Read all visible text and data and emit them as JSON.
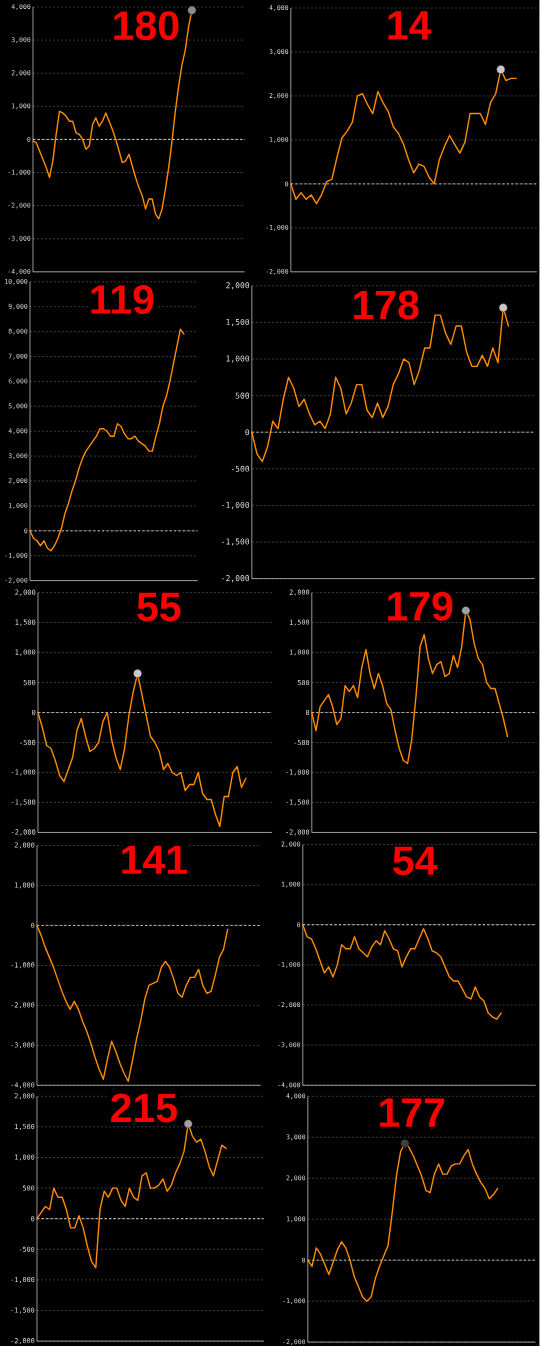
{
  "chart_data": [
    {
      "type": "line",
      "title": "180",
      "categories": [
        null,
        null,
        null,
        null,
        null,
        null,
        null,
        null,
        null,
        null,
        null,
        null,
        null,
        null,
        null,
        null,
        null,
        null,
        null,
        null,
        null,
        null,
        null,
        null,
        null,
        null,
        null,
        null,
        null,
        null,
        null,
        null,
        null,
        null,
        null,
        null,
        null,
        null,
        null,
        null,
        null,
        null,
        null,
        null,
        null,
        null,
        null,
        null,
        null,
        null,
        null,
        null,
        null,
        null,
        null,
        null,
        null,
        null,
        null,
        null,
        null,
        null,
        null,
        null,
        null
      ],
      "series": [
        {
          "color": "#ff8c00",
          "values": [
            -50,
            -100,
            -350,
            -600,
            -850,
            -1150,
            -650,
            150,
            850,
            800,
            700,
            550,
            550,
            200,
            150,
            0,
            -300,
            -200,
            450,
            650,
            400,
            550,
            800,
            550,
            300,
            0,
            -350,
            -700,
            -650,
            -450,
            -800,
            -1150,
            -1450,
            -1700,
            -2100,
            -1800,
            -1800,
            -2250,
            -2400,
            -2100,
            -1500,
            -850,
            -50,
            850,
            1600,
            2250,
            2700,
            3400,
            3900,
            null,
            null,
            null,
            null,
            null,
            null,
            null,
            null,
            null,
            null,
            null,
            null,
            null,
            null,
            null,
            null
          ]
        },
        {
          "type": "scatter",
          "marker": "circle",
          "color": "#8c8c8c",
          "values": [
            null,
            null,
            null,
            null,
            null,
            null,
            null,
            null,
            null,
            null,
            null,
            null,
            null,
            null,
            null,
            null,
            null,
            null,
            null,
            null,
            null,
            null,
            null,
            null,
            null,
            null,
            null,
            null,
            null,
            null,
            null,
            null,
            null,
            null,
            null,
            null,
            null,
            null,
            null,
            null,
            null,
            null,
            null,
            null,
            null,
            null,
            null,
            null,
            3900,
            null,
            null,
            null,
            null,
            null,
            null,
            null,
            null,
            null,
            null,
            null,
            null,
            null,
            null,
            null,
            null
          ]
        }
      ],
      "ylim": [
        -4000,
        4000
      ],
      "yticks": [
        {
          "value": -4000,
          "label": "-4,000"
        },
        {
          "value": -3000,
          "label": "-3,000"
        },
        {
          "value": -2000,
          "label": "-2,000"
        },
        {
          "value": -1000,
          "label": "-1,000"
        },
        0,
        {
          "value": 1000,
          "label": "1,000"
        },
        {
          "value": 2000,
          "label": "2,000"
        },
        {
          "value": 3000,
          "label": "3,000"
        },
        {
          "value": 4000,
          "label": "4,000"
        }
      ],
      "grid": "y",
      "tick_labels": "y",
      "ref_lines": [
        {
          "axis": "y",
          "value": 0,
          "color": "#ffffff",
          "line_style": "dashed"
        }
      ]
    },
    {
      "type": "line",
      "title": "14",
      "categories": [
        null,
        null,
        null,
        null,
        null,
        null,
        null,
        null,
        null,
        null,
        null,
        null,
        null,
        null,
        null,
        null,
        null,
        null,
        null,
        null,
        null,
        null,
        null,
        null,
        null,
        null,
        null,
        null,
        null,
        null,
        null,
        null,
        null,
        null,
        null,
        null,
        null,
        null,
        null,
        null,
        null,
        null,
        null,
        null,
        null,
        null,
        null,
        null,
        null
      ],
      "series": [
        {
          "color": "#ff8c00",
          "values": [
            0,
            -350,
            -200,
            -350,
            -250,
            -450,
            -250,
            50,
            100,
            600,
            1050,
            1200,
            1400,
            2000,
            2050,
            1800,
            1600,
            2100,
            1850,
            1650,
            1300,
            1150,
            900,
            550,
            250,
            450,
            400,
            150,
            0,
            550,
            850,
            1100,
            900,
            700,
            950,
            1600,
            1600,
            1600,
            1350,
            1850,
            2050,
            2600,
            2350,
            2400,
            2400,
            null,
            null,
            null,
            null
          ]
        },
        {
          "type": "scatter",
          "marker": "circle",
          "color": "#c8c8c8",
          "values": [
            null,
            null,
            null,
            null,
            null,
            null,
            null,
            null,
            null,
            null,
            null,
            null,
            null,
            null,
            null,
            null,
            null,
            null,
            null,
            null,
            null,
            null,
            null,
            null,
            null,
            null,
            null,
            null,
            null,
            null,
            null,
            null,
            null,
            null,
            null,
            null,
            null,
            null,
            null,
            null,
            null,
            2600,
            null,
            null,
            null,
            null,
            null,
            null,
            null
          ]
        }
      ],
      "ylim": [
        -2000,
        4000
      ],
      "yticks": [
        {
          "value": -2000,
          "label": "-2,000"
        },
        {
          "value": -1000,
          "label": "-1,000"
        },
        0,
        {
          "value": 1000,
          "label": "1,000"
        },
        {
          "value": 2000,
          "label": "2,000"
        },
        {
          "value": 3000,
          "label": "3,000"
        },
        {
          "value": 4000,
          "label": "4,000"
        }
      ],
      "grid": "y",
      "tick_labels": "y",
      "ref_lines": [
        {
          "axis": "y",
          "value": 0,
          "color": "#dcdcdc",
          "line_style": "dashed"
        }
      ]
    },
    {
      "type": "line",
      "title": "119",
      "categories": [
        null,
        null,
        null,
        null,
        null,
        null,
        null,
        null,
        null,
        null,
        null,
        null,
        null,
        null,
        null,
        null,
        null,
        null,
        null,
        null,
        null,
        null,
        null,
        null,
        null,
        null,
        null,
        null,
        null,
        null,
        null,
        null,
        null,
        null,
        null,
        null,
        null,
        null,
        null,
        null,
        null,
        null,
        null,
        null,
        null,
        null,
        null,
        null,
        null
      ],
      "series": [
        {
          "color": "#ff8c00",
          "values": [
            0,
            -300,
            -400,
            -600,
            -400,
            -700,
            -800,
            -600,
            -300,
            100,
            700,
            1100,
            1600,
            2000,
            2500,
            2900,
            3200,
            3400,
            3600,
            3800,
            4100,
            4100,
            4000,
            3800,
            3800,
            4300,
            4200,
            3900,
            3700,
            3700,
            3800,
            3600,
            3500,
            3400,
            3200,
            3200,
            3800,
            4300,
            5000,
            5400,
            6000,
            6700,
            7400,
            8100,
            7900,
            null,
            null,
            null,
            null
          ]
        }
      ],
      "ylim": [
        -2000,
        10000
      ],
      "yticks": [
        {
          "value": -2000,
          "label": "-2,000"
        },
        {
          "value": -1000,
          "label": "-1,000"
        },
        0,
        {
          "value": 1000,
          "label": "1,000"
        },
        {
          "value": 2000,
          "label": "2,000"
        },
        {
          "value": 3000,
          "label": "3,000"
        },
        {
          "value": 4000,
          "label": "4,000"
        },
        {
          "value": 5000,
          "label": "5,000"
        },
        {
          "value": 6000,
          "label": "6,000"
        },
        {
          "value": 7000,
          "label": "7,000"
        },
        {
          "value": 8000,
          "label": "8,000"
        },
        {
          "value": 9000,
          "label": "9,000"
        },
        {
          "value": 10000,
          "label": "10,000"
        }
      ],
      "grid": "y",
      "tick_labels": "y",
      "ref_lines": [
        {
          "axis": "y",
          "value": 0,
          "color": "#dcdcdc",
          "line_style": "dashed"
        }
      ]
    },
    {
      "type": "line",
      "title": "178",
      "categories": [
        null,
        null,
        null,
        null,
        null,
        null,
        null,
        null,
        null,
        null,
        null,
        null,
        null,
        null,
        null,
        null,
        null,
        null,
        null,
        null,
        null,
        null,
        null,
        null,
        null,
        null,
        null,
        null,
        null,
        null,
        null,
        null,
        null,
        null,
        null,
        null,
        null,
        null,
        null,
        null,
        null,
        null,
        null,
        null,
        null,
        null,
        null,
        null,
        null,
        null,
        null,
        null,
        null,
        null,
        null
      ],
      "series": [
        {
          "color": "#ff8c00",
          "values": [
            0,
            -300,
            -400,
            -200,
            150,
            50,
            450,
            750,
            600,
            350,
            450,
            250,
            100,
            150,
            50,
            250,
            750,
            600,
            250,
            400,
            650,
            650,
            300,
            200,
            400,
            200,
            350,
            650,
            800,
            1000,
            950,
            650,
            850,
            1150,
            1150,
            1600,
            1600,
            1350,
            1200,
            1450,
            1450,
            1100,
            900,
            900,
            1050,
            900,
            1150,
            950,
            1700,
            1450,
            null,
            null,
            null,
            null,
            null
          ]
        },
        {
          "type": "scatter",
          "marker": "circle",
          "color": "#c8c8c8",
          "values": [
            null,
            null,
            null,
            null,
            null,
            null,
            null,
            null,
            null,
            null,
            null,
            null,
            null,
            null,
            null,
            null,
            null,
            null,
            null,
            null,
            null,
            null,
            null,
            null,
            null,
            null,
            null,
            null,
            null,
            null,
            null,
            null,
            null,
            null,
            null,
            null,
            null,
            null,
            null,
            null,
            null,
            null,
            null,
            null,
            null,
            null,
            null,
            null,
            1700,
            null,
            null,
            null,
            null,
            null,
            null
          ]
        }
      ],
      "ylim": [
        -2000,
        2000
      ],
      "yticks": [
        {
          "value": -2000,
          "label": "-2,000"
        },
        {
          "value": -1500,
          "label": "-1,500"
        },
        {
          "value": -1000,
          "label": "-1,000"
        },
        -500,
        0,
        500,
        {
          "value": 1000,
          "label": "1,000"
        },
        {
          "value": 1500,
          "label": "1,500"
        },
        {
          "value": 2000,
          "label": "2,000"
        }
      ],
      "grid": "y",
      "tick_labels": "y",
      "ref_lines": [
        {
          "axis": "y",
          "value": 0,
          "color": "#dcdcdc",
          "line_style": "dashed"
        }
      ]
    },
    {
      "type": "line",
      "title": "55",
      "categories": [
        null,
        null,
        null,
        null,
        null,
        null,
        null,
        null,
        null,
        null,
        null,
        null,
        null,
        null,
        null,
        null,
        null,
        null,
        null,
        null,
        null,
        null,
        null,
        null,
        null,
        null,
        null,
        null,
        null,
        null,
        null,
        null,
        null,
        null,
        null,
        null,
        null,
        null,
        null,
        null,
        null,
        null,
        null,
        null,
        null,
        null,
        null,
        null,
        null,
        null,
        null,
        null,
        null,
        null,
        null
      ],
      "series": [
        {
          "color": "#ff8c00",
          "values": [
            0,
            -250,
            -550,
            -600,
            -800,
            -1050,
            -1150,
            -950,
            -750,
            -300,
            -100,
            -400,
            -650,
            -600,
            -500,
            -150,
            0,
            -450,
            -750,
            -950,
            -600,
            -50,
            350,
            650,
            300,
            -50,
            -400,
            -500,
            -650,
            -950,
            -850,
            -1000,
            -1050,
            -1000,
            -1300,
            -1200,
            -1200,
            -1000,
            -1350,
            -1450,
            -1450,
            -1700,
            -1900,
            -1400,
            -1400,
            -1000,
            -900,
            -1250,
            -1100,
            null,
            null,
            null,
            null,
            null,
            null
          ]
        },
        {
          "type": "scatter",
          "marker": "circle",
          "color": "#c8c8c8",
          "values": [
            null,
            null,
            null,
            null,
            null,
            null,
            null,
            null,
            null,
            null,
            null,
            null,
            null,
            null,
            null,
            null,
            null,
            null,
            null,
            null,
            null,
            null,
            null,
            650,
            null,
            null,
            null,
            null,
            null,
            null,
            null,
            null,
            null,
            null,
            null,
            null,
            null,
            null,
            null,
            null,
            null,
            null,
            null,
            null,
            null,
            null,
            null,
            null,
            null,
            null,
            null,
            null,
            null,
            null,
            null
          ]
        }
      ],
      "ylim": [
        -2000,
        2000
      ],
      "yticks": [
        {
          "value": -2000,
          "label": "-2,000"
        },
        {
          "value": -1500,
          "label": "-1,500"
        },
        {
          "value": -1000,
          "label": "-1,000"
        },
        -500,
        0,
        500,
        {
          "value": 1000,
          "label": "1,000"
        },
        {
          "value": 1500,
          "label": "1,500"
        },
        {
          "value": 2000,
          "label": "2,000"
        }
      ],
      "grid": "y",
      "tick_labels": "y",
      "ref_lines": [
        {
          "axis": "y",
          "value": 0,
          "color": "#dcdcdc",
          "line_style": "dashed"
        }
      ]
    },
    {
      "type": "line",
      "title": "179",
      "categories": [
        null,
        null,
        null,
        null,
        null,
        null,
        null,
        null,
        null,
        null,
        null,
        null,
        null,
        null,
        null,
        null,
        null,
        null,
        null,
        null,
        null,
        null,
        null,
        null,
        null,
        null,
        null,
        null,
        null,
        null,
        null,
        null,
        null,
        null,
        null,
        null,
        null,
        null,
        null,
        null,
        null,
        null,
        null,
        null,
        null,
        null,
        null,
        null,
        null,
        null,
        null,
        null,
        null,
        null,
        null
      ],
      "series": [
        {
          "color": "#ff8c00",
          "values": [
            0,
            -300,
            100,
            200,
            300,
            100,
            -200,
            -100,
            450,
            350,
            450,
            250,
            750,
            1050,
            650,
            400,
            650,
            450,
            150,
            50,
            -300,
            -600,
            -800,
            -850,
            -450,
            250,
            1100,
            1300,
            900,
            650,
            800,
            850,
            600,
            650,
            950,
            750,
            1100,
            1700,
            1550,
            1150,
            900,
            800,
            500,
            400,
            400,
            150,
            -100,
            -400,
            null,
            null,
            null,
            null,
            null,
            null,
            null
          ]
        },
        {
          "type": "scatter",
          "marker": "circle",
          "color": "#a0a0a0",
          "values": [
            null,
            null,
            null,
            null,
            null,
            null,
            null,
            null,
            null,
            null,
            null,
            null,
            null,
            null,
            null,
            null,
            null,
            null,
            null,
            null,
            null,
            null,
            null,
            null,
            null,
            null,
            null,
            null,
            null,
            null,
            null,
            null,
            null,
            null,
            null,
            null,
            null,
            1700,
            null,
            null,
            null,
            null,
            null,
            null,
            null,
            null,
            null,
            null,
            null,
            null,
            null,
            null,
            null,
            null,
            null
          ]
        }
      ],
      "ylim": [
        -2000,
        2000
      ],
      "yticks": [
        {
          "value": -2000,
          "label": "-2,000"
        },
        {
          "value": -1500,
          "label": "-1,500"
        },
        {
          "value": -1000,
          "label": "-1,000"
        },
        -500,
        0,
        500,
        {
          "value": 1000,
          "label": "1,000"
        },
        {
          "value": 1500,
          "label": "1,500"
        },
        {
          "value": 2000,
          "label": "2,000"
        }
      ],
      "grid": "y",
      "tick_labels": "y",
      "ref_lines": [
        {
          "axis": "y",
          "value": 0,
          "color": "#dcdcdc",
          "line_style": "dashed"
        }
      ]
    },
    {
      "type": "line",
      "title": "141",
      "categories": [
        null,
        null,
        null,
        null,
        null,
        null,
        null,
        null,
        null,
        null,
        null,
        null,
        null,
        null,
        null,
        null,
        null,
        null,
        null,
        null,
        null,
        null,
        null,
        null,
        null,
        null,
        null,
        null,
        null,
        null,
        null,
        null,
        null,
        null,
        null,
        null,
        null,
        null,
        null,
        null,
        null,
        null,
        null,
        null,
        null,
        null,
        null,
        null,
        null,
        null,
        null,
        null,
        null,
        null,
        null
      ],
      "series": [
        {
          "color": "#ff8c00",
          "values": [
            0,
            -250,
            -550,
            -800,
            -1050,
            -1350,
            -1650,
            -1900,
            -2100,
            -1900,
            -2100,
            -2400,
            -2650,
            -2950,
            -3300,
            -3600,
            -3850,
            -3350,
            -2900,
            -3150,
            -3450,
            -3700,
            -3900,
            -3400,
            -2850,
            -2400,
            -1850,
            -1500,
            -1450,
            -1400,
            -1050,
            -900,
            -1050,
            -1350,
            -1700,
            -1800,
            -1500,
            -1300,
            -1300,
            -1100,
            -1500,
            -1700,
            -1650,
            -1250,
            -800,
            -600,
            -100,
            null,
            null,
            null,
            null,
            null,
            null,
            null,
            null
          ]
        }
      ],
      "ylim": [
        -4000,
        2000
      ],
      "yticks": [
        {
          "value": -4000,
          "label": "-4,000"
        },
        {
          "value": -3000,
          "label": "-3,000"
        },
        {
          "value": -2000,
          "label": "-2,000"
        },
        {
          "value": -1000,
          "label": "-1,000"
        },
        0,
        {
          "value": 1000,
          "label": "1,000"
        },
        {
          "value": 2000,
          "label": "2,000"
        }
      ],
      "grid": "y",
      "tick_labels": "y",
      "ref_lines": [
        {
          "axis": "y",
          "value": 0,
          "color": "#dcdcdc",
          "line_style": "dashed"
        }
      ]
    },
    {
      "type": "line",
      "title": "54",
      "categories": [
        null,
        null,
        null,
        null,
        null,
        null,
        null,
        null,
        null,
        null,
        null,
        null,
        null,
        null,
        null,
        null,
        null,
        null,
        null,
        null,
        null,
        null,
        null,
        null,
        null,
        null,
        null,
        null,
        null,
        null,
        null,
        null,
        null,
        null,
        null,
        null,
        null,
        null,
        null,
        null,
        null,
        null,
        null,
        null,
        null,
        null,
        null,
        null,
        null,
        null,
        null,
        null,
        null,
        null,
        null
      ],
      "series": [
        {
          "color": "#ff8c00",
          "values": [
            0,
            -300,
            -350,
            -600,
            -900,
            -1200,
            -1050,
            -1300,
            -1000,
            -500,
            -600,
            -600,
            -300,
            -600,
            -700,
            -800,
            -550,
            -400,
            -500,
            -150,
            -350,
            -600,
            -650,
            -1050,
            -800,
            -600,
            -600,
            -350,
            -100,
            -350,
            -650,
            -700,
            -800,
            -1050,
            -1300,
            -1400,
            -1400,
            -1600,
            -1800,
            -1850,
            -1550,
            -1800,
            -1900,
            -2200,
            -2300,
            -2350,
            -2200,
            null,
            null,
            null,
            null,
            null,
            null,
            null,
            null
          ]
        }
      ],
      "ylim": [
        -4000,
        2000
      ],
      "yticks": [
        {
          "value": -4000,
          "label": "-4,000"
        },
        {
          "value": -3000,
          "label": "-3,000"
        },
        {
          "value": -2000,
          "label": "-2,000"
        },
        {
          "value": -1000,
          "label": "-1,000"
        },
        0,
        {
          "value": 1000,
          "label": "1,000"
        },
        {
          "value": 2000,
          "label": "2,000"
        }
      ],
      "grid": "y",
      "tick_labels": "y",
      "ref_lines": [
        {
          "axis": "y",
          "value": 0,
          "color": "#ffffff",
          "line_style": "dashed"
        }
      ]
    },
    {
      "type": "line",
      "title": "215",
      "categories": [
        null,
        null,
        null,
        null,
        null,
        null,
        null,
        null,
        null,
        null,
        null,
        null,
        null,
        null,
        null,
        null,
        null,
        null,
        null,
        null,
        null,
        null,
        null,
        null,
        null,
        null,
        null,
        null,
        null,
        null,
        null,
        null,
        null,
        null,
        null,
        null,
        null,
        null,
        null,
        null,
        null,
        null,
        null,
        null,
        null,
        null,
        null,
        null,
        null,
        null,
        null,
        null,
        null,
        null,
        null
      ],
      "series": [
        {
          "color": "#ff8c00",
          "values": [
            0,
            100,
            200,
            150,
            500,
            350,
            350,
            150,
            -150,
            -150,
            50,
            -150,
            -450,
            -700,
            -800,
            150,
            450,
            350,
            500,
            500,
            300,
            200,
            500,
            350,
            300,
            700,
            750,
            500,
            500,
            550,
            650,
            450,
            550,
            750,
            900,
            1100,
            1550,
            1350,
            1250,
            1300,
            1100,
            850,
            700,
            950,
            1200,
            1150,
            null,
            null,
            null,
            null,
            null,
            null,
            null,
            null,
            null
          ]
        },
        {
          "type": "scatter",
          "marker": "circle",
          "color": "#a0a0a0",
          "values": [
            null,
            null,
            null,
            null,
            null,
            null,
            null,
            null,
            null,
            null,
            null,
            null,
            null,
            null,
            null,
            null,
            null,
            null,
            null,
            null,
            null,
            null,
            null,
            null,
            null,
            null,
            null,
            null,
            null,
            null,
            null,
            null,
            null,
            null,
            null,
            null,
            1550,
            null,
            null,
            null,
            null,
            null,
            null,
            null,
            null,
            null,
            null,
            null,
            null,
            null,
            null,
            null,
            null,
            null,
            null
          ]
        }
      ],
      "ylim": [
        -2000,
        2000
      ],
      "yticks": [
        {
          "value": -2000,
          "label": "-2,000"
        },
        {
          "value": -1500,
          "label": "-1,500"
        },
        {
          "value": -1000,
          "label": "-1,000"
        },
        -500,
        0,
        500,
        {
          "value": 1000,
          "label": "1,000"
        },
        {
          "value": 1500,
          "label": "1,500"
        },
        {
          "value": 2000,
          "label": "2,000"
        }
      ],
      "grid": "y",
      "tick_labels": "y",
      "ref_lines": [
        {
          "axis": "y",
          "value": 0,
          "color": "#ffffff",
          "line_style": "dashed"
        }
      ]
    },
    {
      "type": "line",
      "title": "177",
      "categories": [
        null,
        null,
        null,
        null,
        null,
        null,
        null,
        null,
        null,
        null,
        null,
        null,
        null,
        null,
        null,
        null,
        null,
        null,
        null,
        null,
        null,
        null,
        null,
        null,
        null,
        null,
        null,
        null,
        null,
        null,
        null,
        null,
        null,
        null,
        null,
        null,
        null,
        null,
        null,
        null,
        null,
        null,
        null,
        null,
        null,
        null,
        null,
        null,
        null,
        null,
        null,
        null,
        null,
        null,
        null
      ],
      "series": [
        {
          "color": "#ff8c00",
          "values": [
            0,
            -150,
            300,
            150,
            -100,
            -350,
            -50,
            250,
            450,
            300,
            0,
            -400,
            -650,
            -900,
            -1000,
            -900,
            -450,
            -150,
            100,
            350,
            1150,
            2050,
            2650,
            2850,
            2750,
            2550,
            2300,
            2050,
            1700,
            1650,
            2100,
            2350,
            2100,
            2100,
            2300,
            2350,
            2350,
            2550,
            2700,
            2350,
            2100,
            1900,
            1750,
            1500,
            1600,
            1750,
            null,
            null,
            null,
            null,
            null,
            null,
            null,
            null,
            null
          ]
        },
        {
          "type": "scatter",
          "marker": "circle",
          "color": "#404040",
          "values": [
            null,
            null,
            null,
            null,
            null,
            null,
            null,
            null,
            null,
            null,
            null,
            null,
            null,
            null,
            null,
            null,
            null,
            null,
            null,
            null,
            null,
            null,
            null,
            2850,
            null,
            null,
            null,
            null,
            null,
            null,
            null,
            null,
            null,
            null,
            null,
            null,
            null,
            null,
            null,
            null,
            null,
            null,
            null,
            null,
            null,
            null,
            null,
            null,
            null,
            null,
            null,
            null,
            null,
            null,
            null
          ]
        }
      ],
      "ylim": [
        -2000,
        4000
      ],
      "yticks": [
        {
          "value": -2000,
          "label": "-2,000"
        },
        {
          "value": -1000,
          "label": "-1,000"
        },
        0,
        {
          "value": 1000,
          "label": "1,000"
        },
        {
          "value": 2000,
          "label": "2,000"
        },
        {
          "value": 3000,
          "label": "3,000"
        },
        {
          "value": 4000,
          "label": "4,000"
        }
      ],
      "grid": "y",
      "tick_labels": "y",
      "ref_lines": [
        {
          "axis": "y",
          "value": 0,
          "color": "#dcdcdc",
          "line_style": "dashed"
        }
      ]
    }
  ]
}
